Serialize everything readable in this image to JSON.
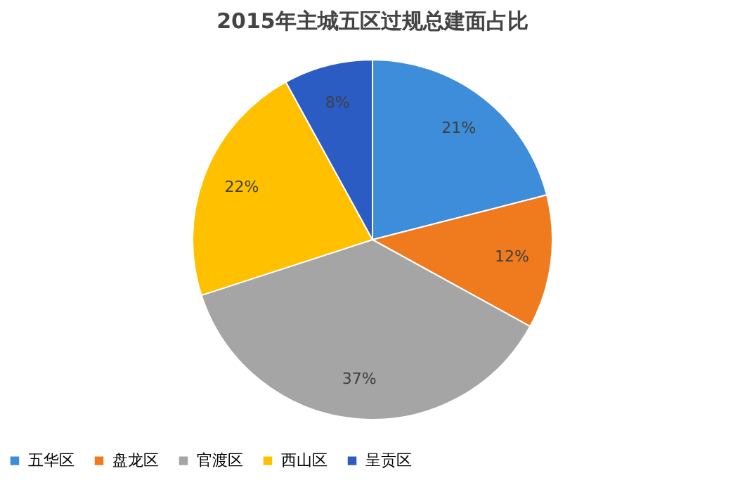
{
  "chart_data": {
    "type": "pie",
    "title": "2015年主城五区过规总建面占比",
    "categories": [
      "五华区",
      "盘龙区",
      "官渡区",
      "西山区",
      "呈贡区"
    ],
    "values": [
      21,
      12,
      37,
      22,
      8
    ],
    "colors": [
      "#3d8ddb",
      "#ef7b1e",
      "#a5a5a5",
      "#ffc000",
      "#2a5cc4"
    ],
    "value_labels": [
      "21%",
      "12%",
      "37%",
      "22%",
      "8%"
    ],
    "legend": "bottom"
  }
}
